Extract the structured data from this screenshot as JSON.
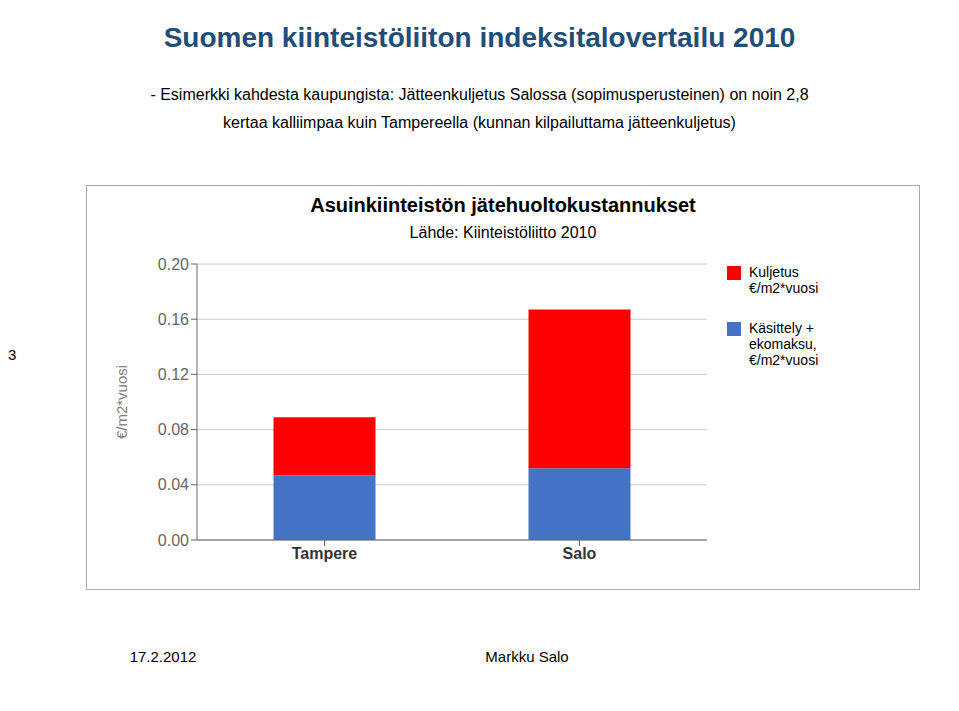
{
  "chart_data": {
    "type": "bar",
    "title": "Asuinkiinteistön jätehuoltokustannukset",
    "subtitle": "Lähde: Kiinteistöliitto 2010",
    "annotations": [
      "Suomen kiinteistöliiton indeksitalovertailu 2010",
      "- Esimerkki kahdesta kaupungista: Jätteenkuljetus Salossa (sopimusperusteinen) on noin 2,8",
      "kertaa kalliimpaa kuin Tampereella (kunnan kilpailuttama jätteenkuljetus)",
      "17.2.2012",
      "Markku Salo",
      "3"
    ],
    "categories": [
      "Tampere",
      "Salo"
    ],
    "series": [
      {
        "name": "Käsittely +\nekomaksu,\n€/m2*vuosi",
        "color": "#4472C4",
        "values": [
          0.047,
          0.052
        ]
      },
      {
        "name": "Kuljetus\n€/m2*vuosi",
        "color": "#FF0000",
        "values": [
          0.042,
          0.115
        ]
      }
    ],
    "y_label": "€/m2*vuosi",
    "ylim": [
      0.0,
      0.2
    ],
    "yticks": [
      {
        "value": 0,
        "label": "0.00"
      },
      0.04,
      0.08,
      0.12,
      0.16,
      {
        "value": 0.2,
        "label": "0.20"
      }
    ],
    "stacked": true,
    "grid": true,
    "legend": "right"
  }
}
